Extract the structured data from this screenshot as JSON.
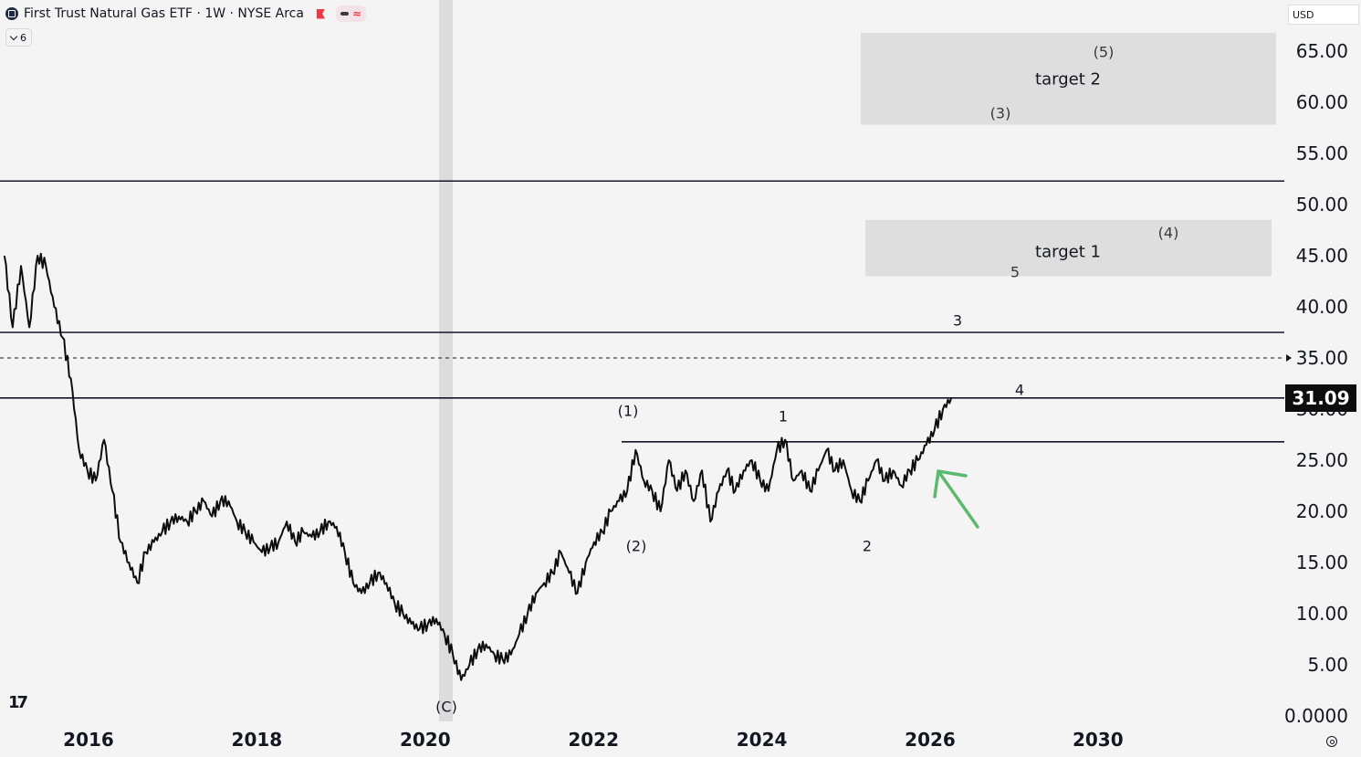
{
  "header": {
    "title": "First Trust Natural Gas ETF · 1W · NYSE Arca",
    "indicator_count": "6"
  },
  "currency": "USD",
  "last_price": "31.09",
  "price_axis": [
    "65.00",
    "60.00",
    "55.00",
    "50.00",
    "45.00",
    "40.00",
    "35.00",
    "30.00",
    "25.00",
    "20.00",
    "15.00",
    "10.00",
    "5.00",
    "0.0000"
  ],
  "time_axis": [
    "2016",
    "2018",
    "2020",
    "2022",
    "2024",
    "2026",
    "2030"
  ],
  "targets": [
    {
      "label": "target 2",
      "low": 57.8,
      "high": 66.8
    },
    {
      "label": "target 1",
      "low": 43.0,
      "high": 48.5
    }
  ],
  "wave_labels": [
    "(5)",
    "(3)",
    "(4)",
    "5",
    "3",
    "4",
    "(1)",
    "1",
    "(2)",
    "2",
    "(C)"
  ],
  "chart_data": {
    "type": "line",
    "x_start": 2015.0,
    "x_end": 2026.25,
    "ylim": [
      0,
      67
    ],
    "horizontal_levels": [
      52.3,
      37.5,
      31.09,
      26.8
    ],
    "dashed_level": 35.0,
    "series": [
      {
        "values": [
          45,
          38,
          44,
          38,
          45,
          44,
          40,
          37,
          33,
          26,
          24,
          23,
          27,
          22,
          17,
          15,
          13,
          16,
          17,
          18,
          19,
          19.5,
          19,
          20,
          21,
          19.5,
          21,
          21,
          19,
          18,
          17,
          16,
          16.5,
          17,
          19,
          17,
          18,
          17.5,
          18,
          19,
          18.5,
          16,
          13,
          12,
          13,
          14,
          13,
          11,
          10,
          9,
          8.5,
          9,
          9.5,
          8,
          6,
          3.5,
          5,
          6.5,
          7,
          6,
          5.5,
          6,
          8,
          10,
          12,
          13,
          14,
          16,
          14,
          12,
          15,
          17,
          18,
          20,
          21,
          22,
          26,
          23,
          22,
          20,
          25,
          22,
          24,
          21,
          24,
          19,
          22,
          24,
          22,
          24,
          25,
          23,
          22,
          26,
          27,
          23,
          24,
          22,
          24,
          26,
          24,
          25,
          22,
          21,
          23,
          25,
          23,
          24,
          22.5,
          24,
          25,
          26.5,
          28,
          30,
          31.09
        ]
      }
    ]
  }
}
